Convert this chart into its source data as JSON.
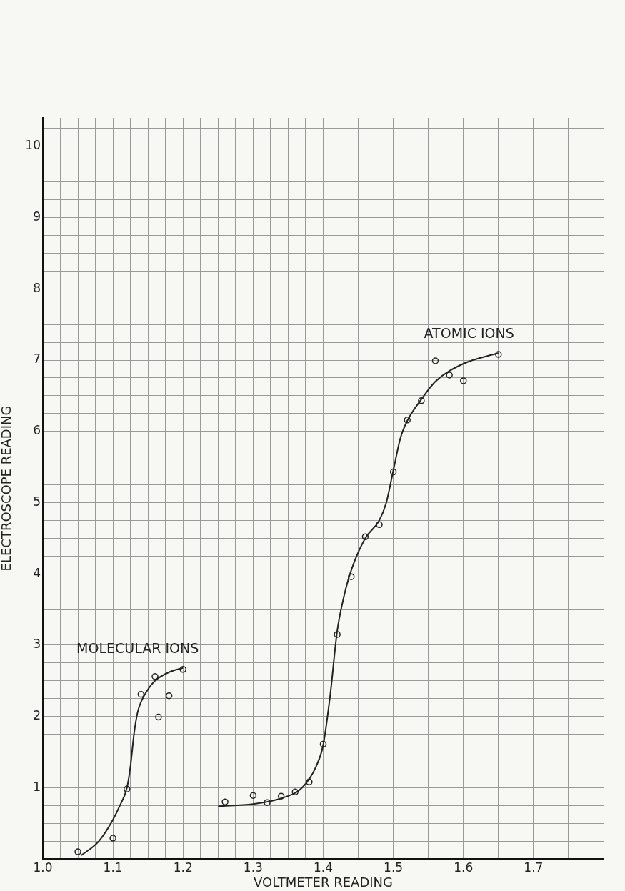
{
  "chart_data": {
    "type": "scatter",
    "xlabel": "VOLTMETER READING",
    "ylabel": "ELECTROSCOPE READING",
    "xlim": [
      1.0,
      1.8
    ],
    "ylim": [
      0,
      10.4
    ],
    "xticks": [
      {
        "value": 1.0,
        "label": "1.0"
      },
      {
        "value": 1.025,
        "label": null
      },
      {
        "value": 1.05,
        "label": null
      },
      {
        "value": 1.075,
        "label": null
      },
      {
        "value": 1.1,
        "label": "1.1"
      },
      {
        "value": 1.125,
        "label": null
      },
      {
        "value": 1.15,
        "label": null
      },
      {
        "value": 1.175,
        "label": null
      },
      {
        "value": 1.2,
        "label": "1.2"
      },
      {
        "value": 1.225,
        "label": null
      },
      {
        "value": 1.25,
        "label": null
      },
      {
        "value": 1.275,
        "label": null
      },
      {
        "value": 1.3,
        "label": "1.3"
      },
      {
        "value": 1.325,
        "label": null
      },
      {
        "value": 1.35,
        "label": null
      },
      {
        "value": 1.375,
        "label": null
      },
      {
        "value": 1.4,
        "label": "1.4"
      },
      {
        "value": 1.425,
        "label": null
      },
      {
        "value": 1.45,
        "label": null
      },
      {
        "value": 1.475,
        "label": null
      },
      {
        "value": 1.5,
        "label": "1.5"
      },
      {
        "value": 1.525,
        "label": null
      },
      {
        "value": 1.55,
        "label": null
      },
      {
        "value": 1.575,
        "label": null
      },
      {
        "value": 1.6,
        "label": "1.6"
      },
      {
        "value": 1.625,
        "label": null
      },
      {
        "value": 1.65,
        "label": null
      },
      {
        "value": 1.675,
        "label": null
      },
      {
        "value": 1.7,
        "label": "1.7"
      },
      {
        "value": 1.725,
        "label": null
      },
      {
        "value": 1.75,
        "label": null
      },
      {
        "value": 1.775,
        "label": null
      },
      {
        "value": 1.8,
        "label": null
      }
    ],
    "yticks": [
      {
        "value": 0,
        "label": null
      },
      {
        "value": 0.25,
        "label": null
      },
      {
        "value": 0.5,
        "label": null
      },
      {
        "value": 0.75,
        "label": null
      },
      1,
      {
        "value": 1.25,
        "label": null
      },
      {
        "value": 1.5,
        "label": null
      },
      {
        "value": 1.75,
        "label": null
      },
      2,
      {
        "value": 2.25,
        "label": null
      },
      {
        "value": 2.5,
        "label": null
      },
      {
        "value": 2.75,
        "label": null
      },
      3,
      {
        "value": 3.25,
        "label": null
      },
      {
        "value": 3.5,
        "label": null
      },
      {
        "value": 3.75,
        "label": null
      },
      4,
      {
        "value": 4.25,
        "label": null
      },
      {
        "value": 4.5,
        "label": null
      },
      {
        "value": 4.75,
        "label": null
      },
      5,
      {
        "value": 5.25,
        "label": null
      },
      {
        "value": 5.5,
        "label": null
      },
      {
        "value": 5.75,
        "label": null
      },
      6,
      {
        "value": 6.25,
        "label": null
      },
      {
        "value": 6.5,
        "label": null
      },
      {
        "value": 6.75,
        "label": null
      },
      7,
      {
        "value": 7.25,
        "label": null
      },
      {
        "value": 7.5,
        "label": null
      },
      {
        "value": 7.75,
        "label": null
      },
      8,
      {
        "value": 8.25,
        "label": null
      },
      {
        "value": 8.5,
        "label": null
      },
      {
        "value": 8.75,
        "label": null
      },
      9,
      {
        "value": 9.25,
        "label": null
      },
      {
        "value": 9.5,
        "label": null
      },
      {
        "value": 9.75,
        "label": null
      },
      10,
      {
        "value": 10.25,
        "label": null
      }
    ],
    "grid": true,
    "series": [
      {
        "marker": "circle",
        "color": "#222222",
        "x": [
          1.05,
          1.1,
          1.12,
          1.14,
          1.16,
          1.165,
          1.18,
          1.2
        ],
        "values": [
          0.1,
          0.29,
          0.98,
          2.31,
          2.56,
          1.99,
          2.29,
          2.66
        ]
      },
      {
        "type": "line",
        "name": "MOLECULAR IONS",
        "color": "#222222",
        "x": [
          1.055,
          1.08,
          1.1,
          1.11,
          1.12,
          1.125,
          1.13,
          1.135,
          1.14,
          1.15,
          1.16,
          1.18,
          1.2
        ],
        "values": [
          0.05,
          0.25,
          0.55,
          0.75,
          1.0,
          1.3,
          1.75,
          2.05,
          2.2,
          2.38,
          2.5,
          2.62,
          2.68
        ]
      },
      {
        "marker": "circle",
        "color": "#222222",
        "x": [
          1.26,
          1.3,
          1.32,
          1.34,
          1.36,
          1.38,
          1.4,
          1.42,
          1.44,
          1.46,
          1.48,
          1.5,
          1.52,
          1.54,
          1.56,
          1.58,
          1.6,
          1.65
        ],
        "values": [
          0.8,
          0.89,
          0.79,
          0.88,
          0.94,
          1.08,
          1.61,
          3.15,
          3.96,
          4.52,
          4.69,
          5.43,
          6.16,
          6.43,
          6.99,
          6.79,
          6.71,
          7.08
        ]
      },
      {
        "type": "line",
        "name": "ATOMIC IONS",
        "color": "#222222",
        "x": [
          1.25,
          1.3,
          1.34,
          1.37,
          1.39,
          1.4,
          1.41,
          1.42,
          1.43,
          1.44,
          1.46,
          1.48,
          1.49,
          1.5,
          1.51,
          1.52,
          1.54,
          1.56,
          1.6,
          1.65
        ],
        "values": [
          0.74,
          0.77,
          0.85,
          1.0,
          1.3,
          1.6,
          2.3,
          3.2,
          3.7,
          4.05,
          4.5,
          4.75,
          5.0,
          5.45,
          5.9,
          6.15,
          6.45,
          6.7,
          6.95,
          7.1
        ]
      }
    ]
  }
}
